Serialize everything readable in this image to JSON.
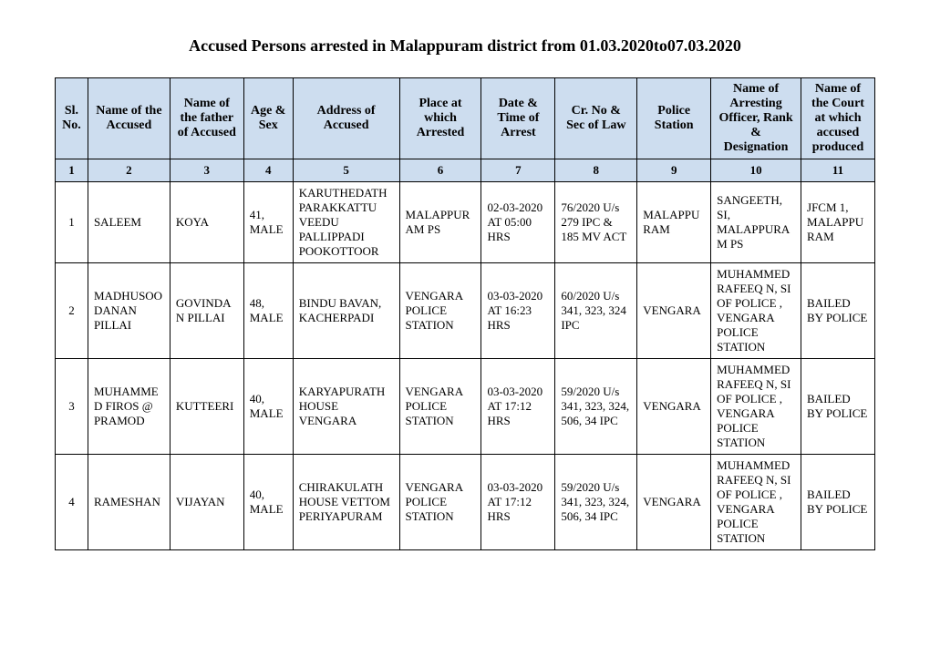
{
  "document": {
    "title": "Accused Persons arrested in  Malappuram  district from   01.03.2020to07.03.2020"
  },
  "table": {
    "headers": [
      "Sl. No.",
      "Name of the Accused",
      "Name of the father of Accused",
      "Age & Sex",
      "Address of Accused",
      "Place at which Arrested",
      "Date & Time of Arrest",
      "Cr. No & Sec of Law",
      "Police Station",
      "Name of Arresting Officer, Rank & Designation",
      "Name of the Court at which accused produced"
    ],
    "column_numbers": [
      "1",
      "2",
      "3",
      "4",
      "5",
      "6",
      "7",
      "8",
      "9",
      "10",
      "11"
    ],
    "rows": [
      {
        "sl": "1",
        "name": "SALEEM",
        "father": "KOYA",
        "agesex": "41, MALE",
        "address": "KARUTHEDATH PARAKKATTU VEEDU PALLIPPADI POOKOTTOOR",
        "place": "MALAPPURAM PS",
        "datetime": "02-03-2020 AT 05:00 HRS",
        "crno": "76/2020 U/s 279 IPC & 185 MV ACT",
        "station": "MALAPPURAM",
        "officer": "SANGEETH, SI, MALAPPURAM PS",
        "court": "JFCM 1, MALAPPURAM"
      },
      {
        "sl": "2",
        "name": "MADHUSOODANAN PILLAI",
        "father": "GOVINDAN PILLAI",
        "agesex": "48, MALE",
        "address": "BINDU BAVAN, KACHERPADI",
        "place": "VENGARA POLICE STATION",
        "datetime": "03-03-2020 AT 16:23 HRS",
        "crno": "60/2020 U/s 341, 323, 324 IPC",
        "station": "VENGARA",
        "officer": "MUHAMMED RAFEEQ N, SI OF POLICE , VENGARA POLICE STATION",
        "court": "BAILED BY POLICE"
      },
      {
        "sl": "3",
        "name": "MUHAMMED FIROS @ PRAMOD",
        "father": "KUTTEERI",
        "agesex": "40, MALE",
        "address": "KARYAPURATH HOUSE VENGARA",
        "place": "VENGARA POLICE STATION",
        "datetime": "03-03-2020 AT 17:12 HRS",
        "crno": "59/2020 U/s 341, 323, 324, 506, 34 IPC",
        "station": "VENGARA",
        "officer": "MUHAMMED RAFEEQ N, SI OF POLICE , VENGARA POLICE STATION",
        "court": "BAILED BY POLICE"
      },
      {
        "sl": "4",
        "name": "RAMESHAN",
        "father": "VIJAYAN",
        "agesex": "40, MALE",
        "address": "CHIRAKULATH HOUSE VETTOM PERIYAPURAM",
        "place": "VENGARA POLICE STATION",
        "datetime": "03-03-2020 AT 17:12 HRS",
        "crno": "59/2020 U/s 341, 323, 324, 506, 34 IPC",
        "station": "VENGARA",
        "officer": "MUHAMMED RAFEEQ N, SI OF POLICE , VENGARA POLICE STATION",
        "court": "BAILED BY POLICE"
      }
    ]
  }
}
